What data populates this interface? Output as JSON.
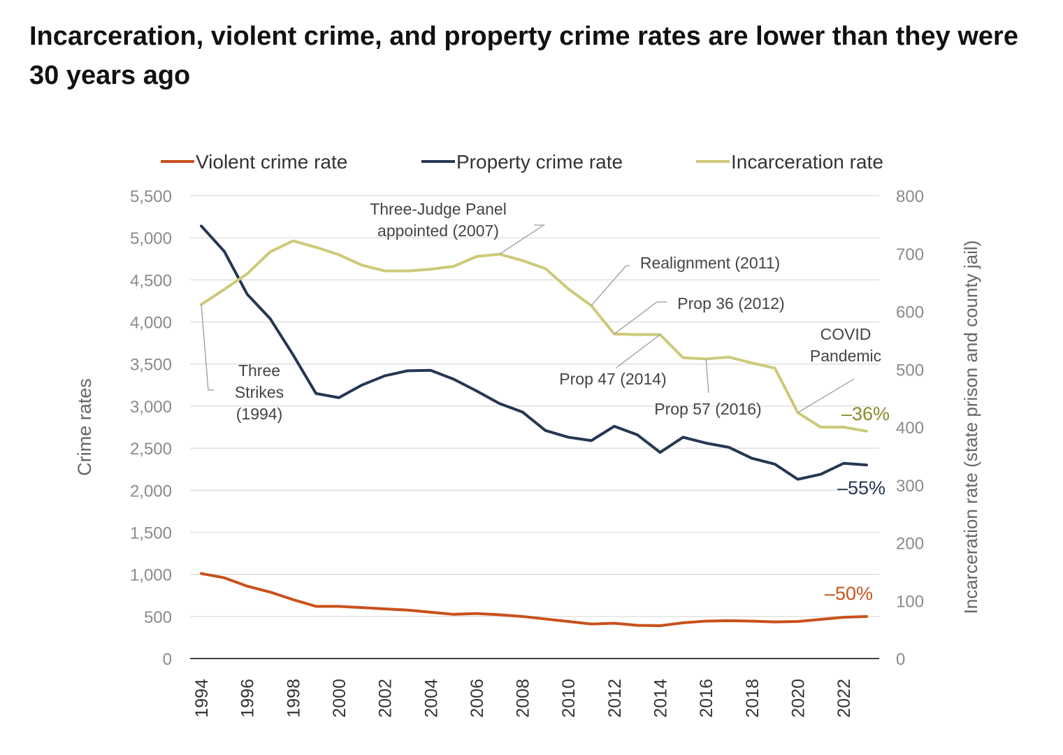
{
  "title": "Incarceration, violent crime, and property crime rates are lower than they were 30 years ago",
  "chart_data": {
    "type": "line",
    "y_label_left": "Crime rates",
    "y_label_right": "Incarceration rate (state prison and county jail)",
    "left_axis": {
      "ylim": [
        0,
        5500
      ],
      "ticks": [
        0,
        500,
        1000,
        1500,
        2000,
        2500,
        3000,
        3500,
        4000,
        4500,
        5000,
        5500
      ],
      "tick_labels": [
        "0",
        "500",
        "1,000",
        "1,500",
        "2,000",
        "2,500",
        "3,000",
        "3,500",
        "4,000",
        "4,500",
        "5,000",
        "5,500"
      ]
    },
    "right_axis": {
      "ylim": [
        0,
        800
      ],
      "ticks": [
        0,
        100,
        200,
        300,
        400,
        500,
        600,
        700,
        800
      ],
      "tick_labels": [
        "0",
        "100",
        "200",
        "300",
        "400",
        "500",
        "600",
        "700",
        "800"
      ]
    },
    "x": [
      1994,
      1995,
      1996,
      1997,
      1998,
      1999,
      2000,
      2001,
      2002,
      2003,
      2004,
      2005,
      2006,
      2007,
      2008,
      2009,
      2010,
      2011,
      2012,
      2013,
      2014,
      2015,
      2016,
      2017,
      2018,
      2019,
      2020,
      2021,
      2022,
      2023
    ],
    "x_tick_labels": [
      "1994",
      "1996",
      "1998",
      "2000",
      "2002",
      "2004",
      "2006",
      "2008",
      "2010",
      "2012",
      "2014",
      "2016",
      "2018",
      "2020",
      "2022"
    ],
    "grid": true,
    "legend_position": "top",
    "series": [
      {
        "name": "Violent crime rate",
        "axis": "left",
        "color": "#c8511b",
        "values": [
          1010,
          960,
          860,
          790,
          700,
          620,
          620,
          605,
          590,
          575,
          550,
          525,
          535,
          520,
          500,
          470,
          440,
          410,
          420,
          395,
          390,
          425,
          445,
          450,
          445,
          435,
          440,
          465,
          490,
          500
        ]
      },
      {
        "name": "Property crime rate",
        "axis": "left",
        "color": "#253752",
        "values": [
          5140,
          4840,
          4330,
          4040,
          3610,
          3150,
          3100,
          3250,
          3360,
          3420,
          3425,
          3320,
          3180,
          3030,
          2930,
          2710,
          2630,
          2590,
          2760,
          2660,
          2450,
          2630,
          2560,
          2510,
          2380,
          2310,
          2130,
          2190,
          2320,
          2300
        ]
      },
      {
        "name": "Incarceration rate",
        "axis": "right",
        "color": "#cdc97a",
        "values": [
          612,
          638,
          665,
          703,
          722,
          711,
          698,
          680,
          670,
          670,
          673,
          678,
          695,
          699,
          688,
          674,
          639,
          610,
          561,
          560,
          560,
          520,
          518,
          521,
          511,
          502,
          425,
          400,
          400,
          393
        ]
      }
    ],
    "end_labels": [
      {
        "text": "–36%",
        "series": 2,
        "color": "#8b8a2a"
      },
      {
        "text": "–55%",
        "series": 1,
        "color": "#253752"
      },
      {
        "text": "–50%",
        "series": 0,
        "color": "#c8511b"
      }
    ],
    "annotations": [
      {
        "text_lines": [
          "Three-Judge Panel",
          "appointed (2007)"
        ]
      },
      {
        "text_lines": [
          "Realignment (2011)"
        ]
      },
      {
        "text_lines": [
          "Prop 36 (2012)"
        ]
      },
      {
        "text_lines": [
          "COVID",
          "Pandemic"
        ]
      },
      {
        "text_lines": [
          "Three",
          "Strikes",
          "(1994)"
        ]
      },
      {
        "text_lines": [
          "Prop 47 (2014)"
        ]
      },
      {
        "text_lines": [
          "Prop 57 (2016)"
        ]
      }
    ]
  }
}
